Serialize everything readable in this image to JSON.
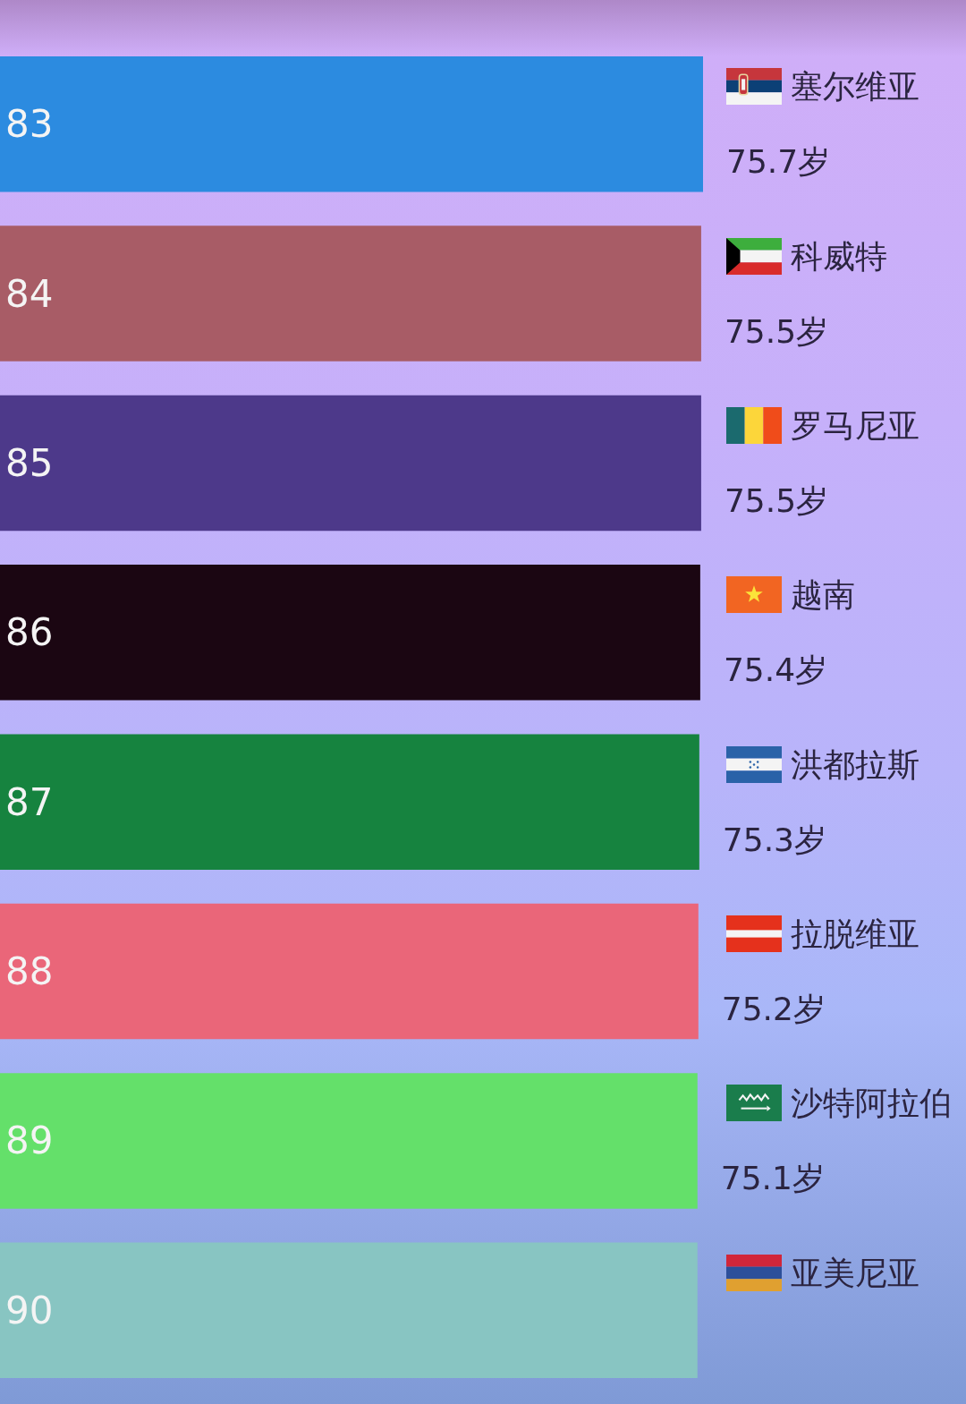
{
  "chart_data": {
    "type": "bar",
    "orientation": "horizontal",
    "categories": [
      "塞尔维亚",
      "科威特",
      "罗马尼亚",
      "越南",
      "洪都拉斯",
      "拉脱维亚",
      "沙特阿拉伯",
      "亚美尼亚"
    ],
    "values": [
      75.7,
      75.5,
      75.5,
      75.4,
      75.3,
      75.2,
      75.1,
      75.1
    ],
    "value_labels": [
      "75.7岁",
      "75.5岁",
      "75.5岁",
      "75.4岁",
      "75.3岁",
      "75.2岁",
      "75.1岁",
      null
    ],
    "colors": [
      "#2c8be0",
      "#a85c66",
      "#4d398a",
      "#1b0612",
      "#16833f",
      "#ea6679",
      "#64e06a",
      "#88c5c2"
    ],
    "annotations": [
      "83",
      "84",
      "85",
      "86",
      "87",
      "88",
      "89",
      "90"
    ],
    "tick_labels": "y"
  }
}
